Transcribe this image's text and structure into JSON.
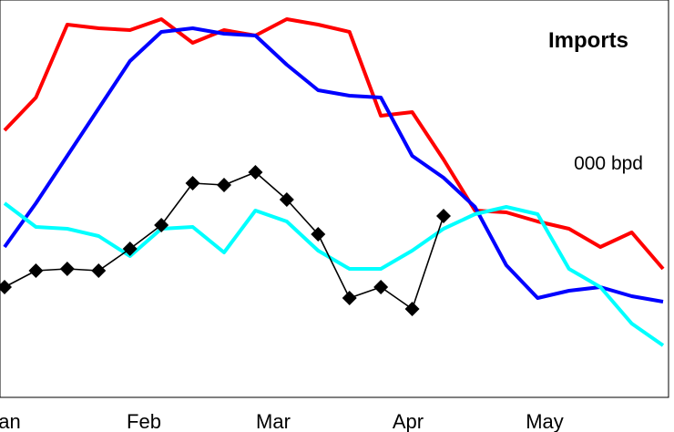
{
  "chart_data": {
    "type": "line",
    "title": "Imports",
    "unit_label": "000 bpd",
    "xlabel": "",
    "ylabel": "",
    "x_tick_labels": [
      "Jan",
      "Feb",
      "Mar",
      "Apr",
      "May"
    ],
    "xlim": [
      0,
      21
    ],
    "ylim": [
      0,
      1
    ],
    "grid": false,
    "legend": "none",
    "series": [
      {
        "color": "#ff0000",
        "marker": "none",
        "values": [
          0.68,
          0.77,
          0.97,
          0.96,
          0.955,
          0.985,
          0.92,
          0.955,
          0.94,
          0.985,
          0.97,
          0.95,
          0.72,
          0.73,
          0.6,
          0.46,
          0.455,
          0.43,
          0.41,
          0.36,
          0.4,
          0.3
        ]
      },
      {
        "color": "#0000ff",
        "marker": "none",
        "values": [
          0.36,
          0.48,
          0.61,
          0.74,
          0.87,
          0.95,
          0.96,
          0.945,
          0.94,
          0.86,
          0.79,
          0.775,
          0.77,
          0.61,
          0.55,
          0.47,
          0.31,
          0.22,
          0.24,
          0.25,
          0.225,
          0.21
        ]
      },
      {
        "color": "#00ffff",
        "marker": "none",
        "values": [
          0.48,
          0.415,
          0.41,
          0.39,
          0.335,
          0.41,
          0.415,
          0.345,
          0.46,
          0.43,
          0.35,
          0.3,
          0.3,
          0.35,
          0.41,
          0.45,
          0.47,
          0.45,
          0.3,
          0.25,
          0.15,
          0.09
        ]
      },
      {
        "color": "#000000",
        "marker": "diamond",
        "values": [
          0.25,
          0.295,
          0.3,
          0.295,
          0.355,
          0.42,
          0.535,
          0.53,
          0.565,
          0.49,
          0.395,
          0.22,
          0.25,
          0.19,
          0.445
        ]
      }
    ]
  }
}
